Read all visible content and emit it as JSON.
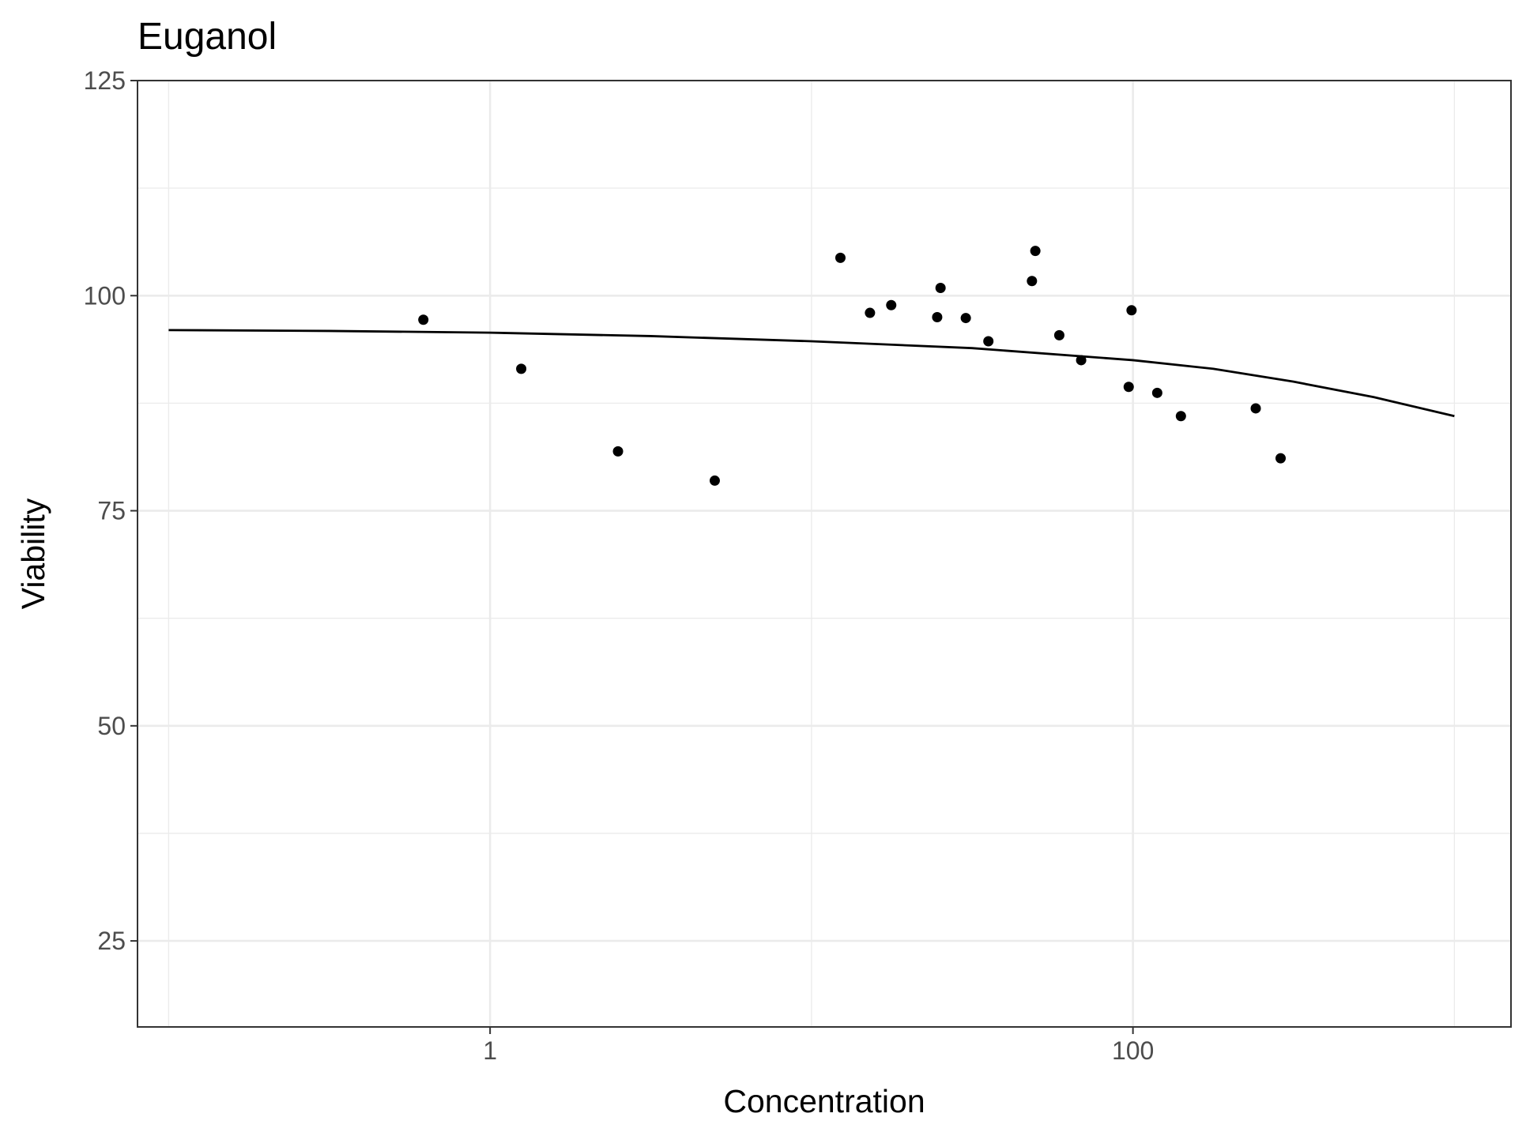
{
  "chart_data": {
    "type": "scatter",
    "title": "Euganol",
    "xlabel": "Concentration",
    "ylabel": "Viability",
    "x_scale": "log10",
    "xlim": [
      0.08,
      1500
    ],
    "ylim": [
      15,
      125
    ],
    "x_ticks": [
      {
        "value": 1,
        "label": "1"
      },
      {
        "value": 100,
        "label": "100"
      }
    ],
    "x_minor_gridlines": [
      0.1,
      10,
      1000
    ],
    "y_ticks": [
      {
        "value": 25,
        "label": "25"
      },
      {
        "value": 50,
        "label": "50"
      },
      {
        "value": 75,
        "label": "75"
      },
      {
        "value": 100,
        "label": "100"
      },
      {
        "value": 125,
        "label": "125"
      }
    ],
    "y_minor_gridlines": [
      37.5,
      62.5,
      87.5,
      112.5
    ],
    "grid": true,
    "legend": "none",
    "points": {
      "color": "#000000",
      "x": [
        0.62,
        1.25,
        2.5,
        5.0,
        12.3,
        15.2,
        17.7,
        24.6,
        25.2,
        30.2,
        35.5,
        48.5,
        49.7,
        59.0,
        69.0,
        97.0,
        99.0,
        119.0,
        141.0,
        241.0,
        288.0
      ],
      "y": [
        97.2,
        91.5,
        81.9,
        78.5,
        104.4,
        98.0,
        98.9,
        97.5,
        100.9,
        97.4,
        94.7,
        101.7,
        105.2,
        95.4,
        92.5,
        89.4,
        98.3,
        88.7,
        86.0,
        86.9,
        81.1
      ]
    },
    "fit_line": {
      "color": "#000000",
      "x": [
        0.1,
        0.316,
        1,
        3.16,
        10,
        31.6,
        100,
        178,
        316,
        562,
        1000
      ],
      "y": [
        96.0,
        95.9,
        95.7,
        95.3,
        94.7,
        93.9,
        92.5,
        91.5,
        90.0,
        88.2,
        86.0
      ]
    }
  }
}
